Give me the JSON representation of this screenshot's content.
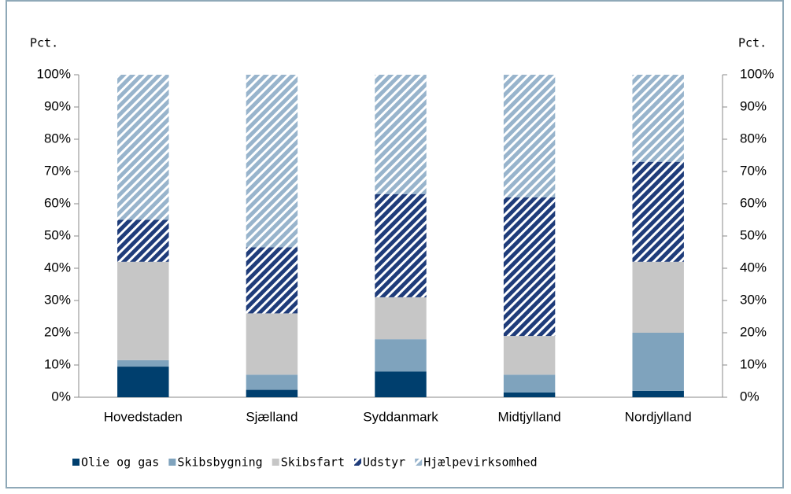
{
  "chart_data": {
    "type": "stacked_bar",
    "y_label": "Pct.",
    "y2_label": "Pct.",
    "categories": [
      "Hovedstaden",
      "Sjælland",
      "Syddanmark",
      "Midtjylland",
      "Nordjylland"
    ],
    "series": [
      {
        "name": "Olie og gas",
        "color": "#003f6e",
        "values": [
          9.5,
          2.3,
          8,
          1.5,
          2
        ]
      },
      {
        "name": "Skibsbygning",
        "color": "#7fa3bd",
        "values": [
          2,
          4.7,
          10,
          5.5,
          18
        ]
      },
      {
        "name": "Skibsfart",
        "color": "#c6c6c6",
        "values": [
          30.5,
          19,
          13,
          12,
          22
        ]
      },
      {
        "name": "Udstyr",
        "color": "#1f3c7a",
        "hatch": true,
        "values": [
          13,
          20.5,
          32,
          43,
          31
        ]
      },
      {
        "name": "Hjælpevirksomhed",
        "color": "#98b4cc",
        "hatch": true,
        "values": [
          45,
          53.5,
          37,
          38,
          27
        ]
      }
    ],
    "ylim": [
      0,
      100
    ],
    "yticks": [
      {
        "value": 0,
        "label": "0%"
      },
      {
        "value": 10,
        "label": "10%"
      },
      {
        "value": 20,
        "label": "20%"
      },
      {
        "value": 30,
        "label": "30%"
      },
      {
        "value": 40,
        "label": "40%"
      },
      {
        "value": 50,
        "label": "50%"
      },
      {
        "value": 60,
        "label": "60%"
      },
      {
        "value": 70,
        "label": "70%"
      },
      {
        "value": 80,
        "label": "80%"
      },
      {
        "value": 90,
        "label": "90%"
      },
      {
        "value": 100,
        "label": "100%"
      }
    ],
    "y2lim": [
      0,
      100
    ],
    "y2ticks": [
      {
        "value": 0,
        "label": "0%"
      },
      {
        "value": 10,
        "label": "10%"
      },
      {
        "value": 20,
        "label": "20%"
      },
      {
        "value": 30,
        "label": "30%"
      },
      {
        "value": 40,
        "label": "40%"
      },
      {
        "value": 50,
        "label": "50%"
      },
      {
        "value": 60,
        "label": "60%"
      },
      {
        "value": 70,
        "label": "70%"
      },
      {
        "value": 80,
        "label": "80%"
      },
      {
        "value": 90,
        "label": "90%"
      },
      {
        "value": 100,
        "label": "100%"
      }
    ],
    "grid": false
  }
}
